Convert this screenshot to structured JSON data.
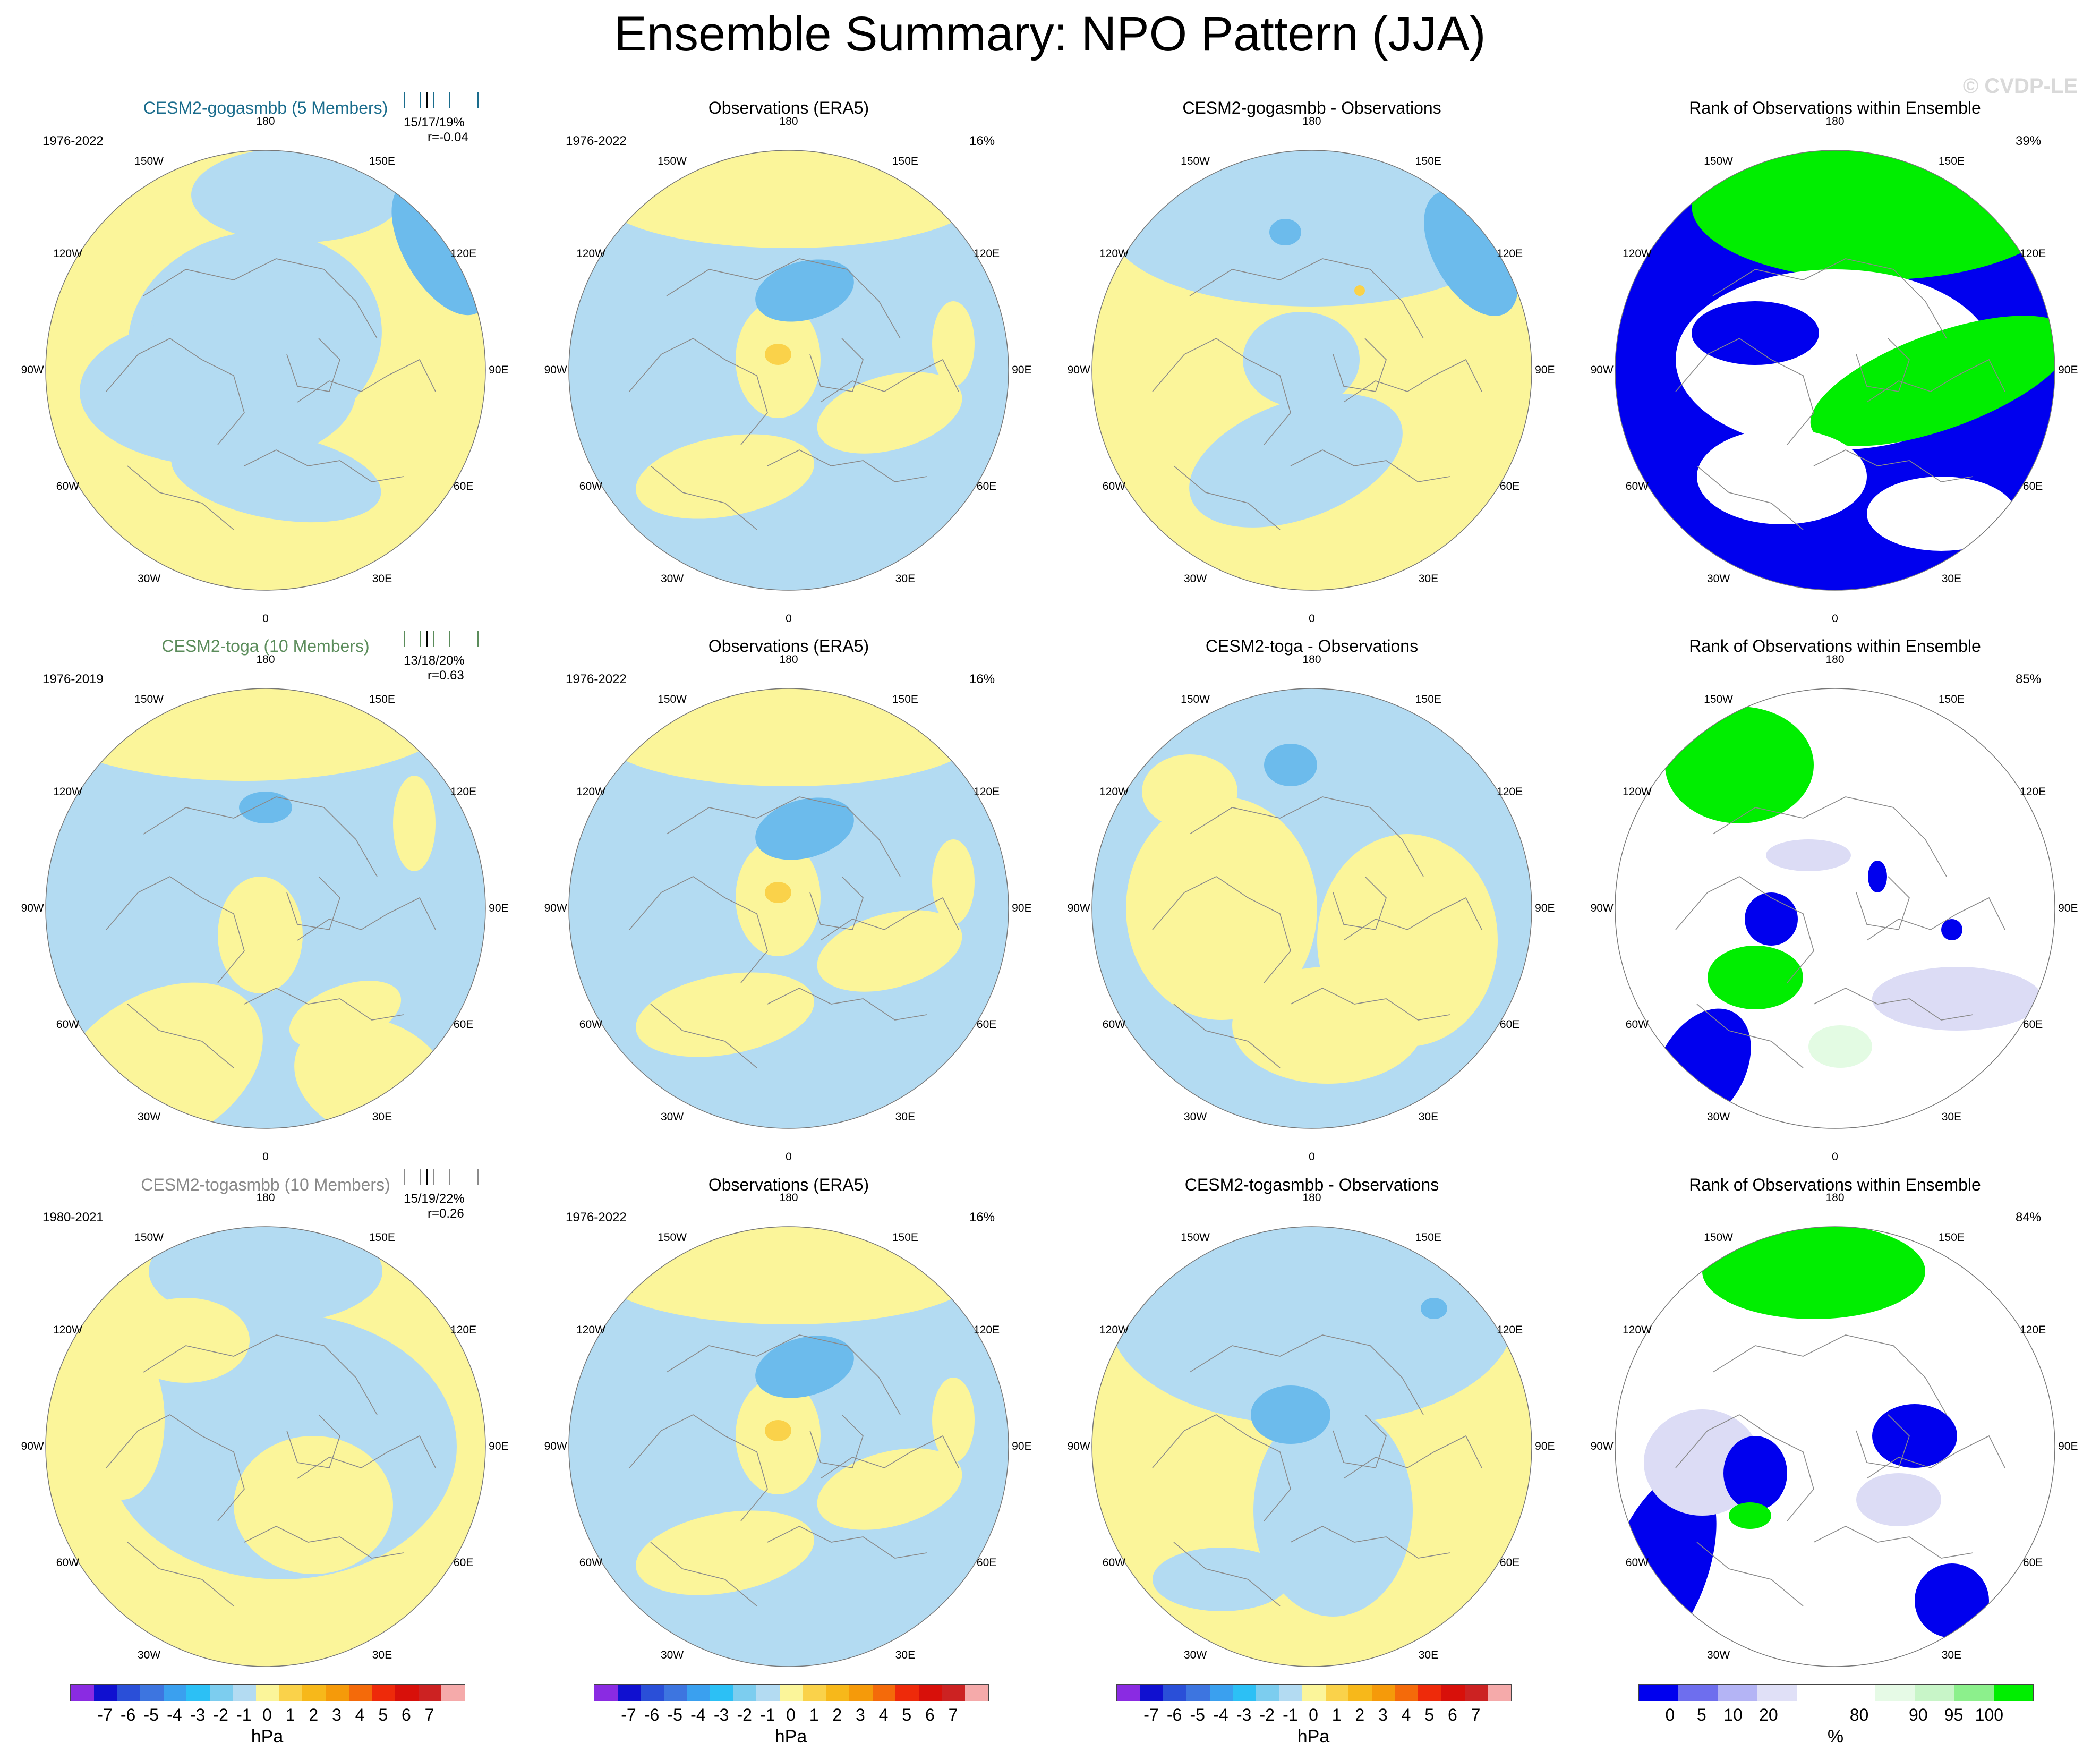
{
  "title": "Ensemble Summary: NPO Pattern (JJA)",
  "watermark": "© CVDP-LE",
  "lon_labels": [
    "180",
    "150E",
    "120E",
    "90E",
    "60E",
    "30E",
    "0",
    "30W",
    "60W",
    "90W",
    "120W",
    "150W"
  ],
  "colors": {
    "neg_light": "#b3dbf2",
    "neg_mid": "#6cbbec",
    "neg_dark": "#3d8fe0",
    "pos_light": "#fbf59a",
    "pos_mid": "#fad24a",
    "pos_dark": "#f5a623",
    "rank_low": "#0000ee",
    "rank_lowmid": "#dcdcf5",
    "rank_high": "#00ee00",
    "rank_highmid": "#e3fbe3",
    "model1_title": "#1a6c8c",
    "model2_title": "#5b8c5b",
    "model3_title": "#8a8a8a"
  },
  "rows": [
    {
      "model_title": "CESM2-gogasmbb (5 Members)",
      "model_years": "1976-2022",
      "model_stats": "15/17/19%",
      "model_r": "r=-0.04",
      "obs_title": "Observations (ERA5)",
      "obs_years": "1976-2022",
      "obs_pct": "16%",
      "diff_title": "CESM2-gogasmbb - Observations",
      "rank_title": "Rank of Observations within Ensemble",
      "rank_pct": "39%"
    },
    {
      "model_title": "CESM2-toga (10 Members)",
      "model_years": "1976-2019",
      "model_stats": "13/18/20%",
      "model_r": "r=0.63",
      "obs_title": "Observations (ERA5)",
      "obs_years": "1976-2022",
      "obs_pct": "16%",
      "diff_title": "CESM2-toga - Observations",
      "rank_title": "Rank of Observations within Ensemble",
      "rank_pct": "85%"
    },
    {
      "model_title": "CESM2-togasmbb (10 Members)",
      "model_years": "1980-2021",
      "model_stats": "15/19/22%",
      "model_r": "r=0.26",
      "obs_title": "Observations (ERA5)",
      "obs_years": "1976-2022",
      "obs_pct": "16%",
      "diff_title": "CESM2-togasmbb - Observations",
      "rank_title": "Rank of Observations within Ensemble",
      "rank_pct": "84%"
    }
  ],
  "hpa_colorbar": {
    "colors": [
      "#8a2be2",
      "#1010d0",
      "#2a4fd8",
      "#3d75e0",
      "#3aa0ef",
      "#2cc0f5",
      "#7ccdef",
      "#b3dbf2",
      "#fbf59a",
      "#fad24a",
      "#f7b81a",
      "#f59a0a",
      "#f46a0a",
      "#ee2a0a",
      "#d8100a",
      "#cc2222",
      "#f5aaaa"
    ],
    "labels": [
      "-7",
      "-6",
      "-5",
      "-4",
      "-3",
      "-2",
      "-1",
      "0",
      "1",
      "2",
      "3",
      "4",
      "5",
      "6",
      "7"
    ],
    "unit": "hPa"
  },
  "rank_colorbar": {
    "colors": [
      "#0000ee",
      "#6e6eee",
      "#b4b4f5",
      "#e0e0f7",
      "#ffffff",
      "#ffffff",
      "#e6fae6",
      "#c8f5c8",
      "#8cf08c",
      "#00ee00"
    ],
    "labels": [
      "0",
      "5",
      "10",
      "20",
      "80",
      "90",
      "95",
      "100"
    ],
    "unit": "%"
  }
}
